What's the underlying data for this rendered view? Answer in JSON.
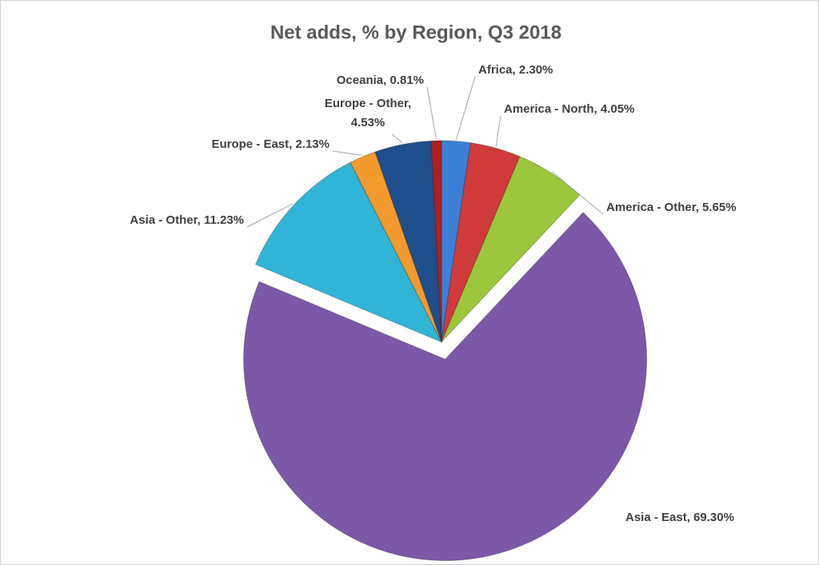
{
  "chart_data": {
    "type": "pie",
    "title": "Net adds, % by Region, Q3 2018",
    "values": [
      2.3,
      4.05,
      5.65,
      69.3,
      11.23,
      2.13,
      4.53,
      0.81
    ],
    "value_labels": [
      "Africa, 2.30%",
      "America - North, 4.05%",
      "America - Other, 5.65%",
      "Asia - East, 69.30%",
      "Asia - Other, 11.23%",
      "Europe - East, 2.13%",
      "Europe - Other,\n4.53%",
      "Oceania, 0.81%"
    ],
    "colors": [
      "#3a7fd5",
      "#d13a3a",
      "#9cc63c",
      "#7c58a8",
      "#30b5d8",
      "#f29a2e",
      "#1f4e8c",
      "#b01f1f"
    ],
    "exploded": [
      3
    ]
  }
}
